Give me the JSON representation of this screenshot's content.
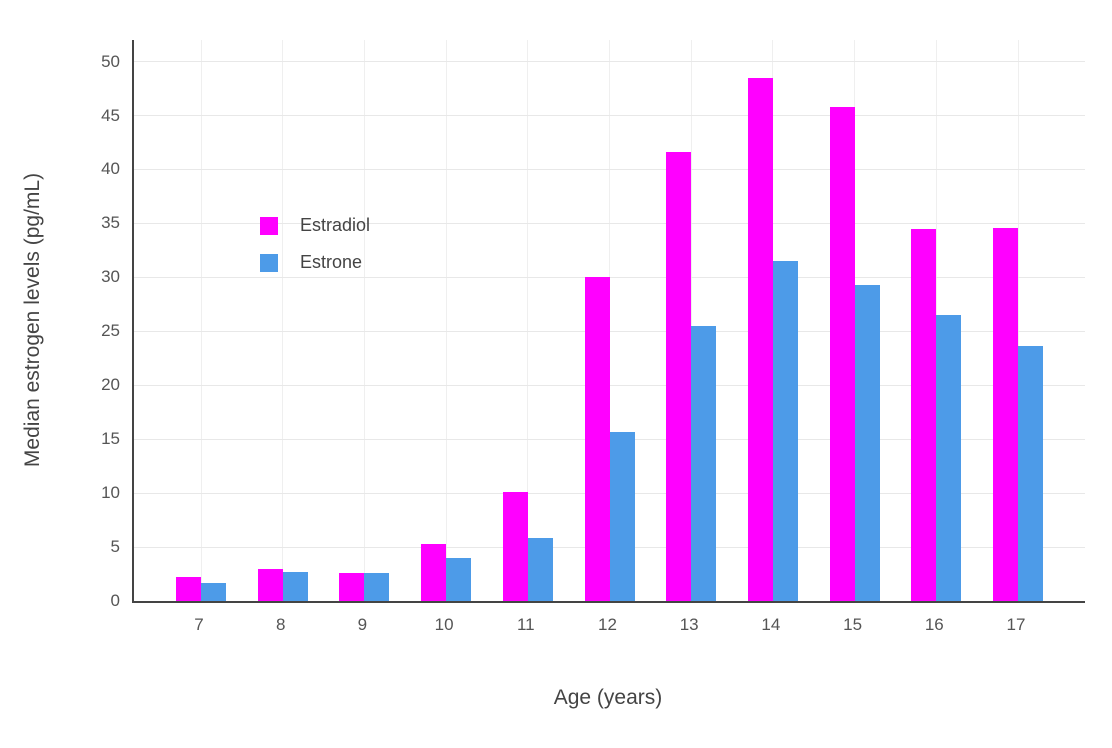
{
  "chart_data": {
    "type": "bar",
    "title": "",
    "xlabel": "Age (years)",
    "ylabel": "Median estrogen levels (pg/mL)",
    "categories": [
      "7",
      "8",
      "9",
      "10",
      "11",
      "12",
      "13",
      "14",
      "15",
      "16",
      "17"
    ],
    "series": [
      {
        "name": "Estradiol",
        "color": "#FF00FF",
        "values": [
          2.2,
          3.0,
          2.6,
          5.3,
          10.1,
          30.0,
          41.6,
          48.5,
          45.8,
          34.5,
          34.6
        ]
      },
      {
        "name": "Estrone",
        "color": "#4D9BE8",
        "values": [
          1.7,
          2.7,
          2.6,
          4.0,
          5.8,
          15.7,
          25.5,
          31.5,
          29.3,
          26.5,
          23.6
        ]
      }
    ],
    "ylim": [
      0,
      50
    ],
    "yticks": [
      0,
      5,
      10,
      15,
      20,
      25,
      30,
      35,
      40,
      45,
      50
    ],
    "grid": true,
    "legend_position": "inside-top-left",
    "colors": {
      "axis_line": "#444444",
      "tick_label": "#555555",
      "axis_title": "#444444",
      "gridline": "#e8e8e8",
      "background": "#ffffff"
    }
  }
}
